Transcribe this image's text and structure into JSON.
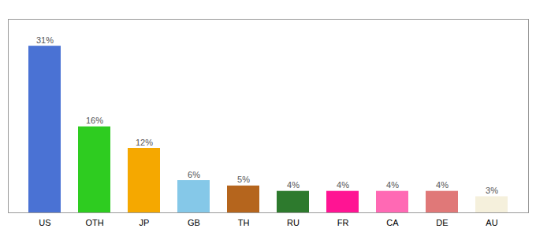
{
  "chart_data": {
    "type": "bar",
    "categories": [
      "US",
      "OTH",
      "JP",
      "GB",
      "TH",
      "RU",
      "FR",
      "CA",
      "DE",
      "AU"
    ],
    "values": [
      31,
      16,
      12,
      6,
      5,
      4,
      4,
      4,
      4,
      3
    ],
    "value_labels": [
      "31%",
      "16%",
      "12%",
      "6%",
      "5%",
      "4%",
      "4%",
      "4%",
      "4%",
      "3%"
    ],
    "colors": [
      "#4a72d4",
      "#2ecc20",
      "#f5a800",
      "#85c8e8",
      "#b5651d",
      "#2d7a2d",
      "#ff1493",
      "#ff69b4",
      "#e07878",
      "#f5f0dc"
    ],
    "ylim": [
      0,
      36
    ],
    "yticks": [],
    "grid": false,
    "data_labels": true,
    "tick_labels": "x"
  }
}
